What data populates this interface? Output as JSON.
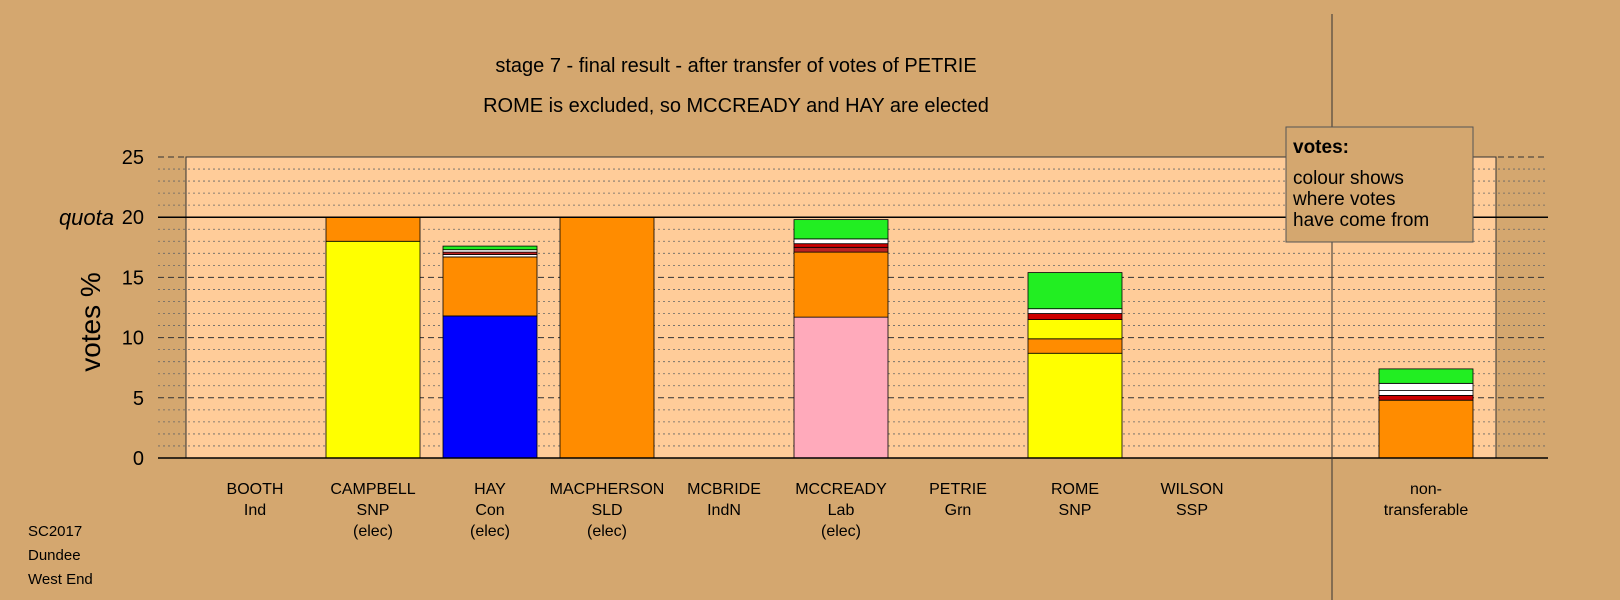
{
  "title_line1": "stage 7 - final result - after transfer of votes of PETRIE",
  "title_line2": "ROME is excluded, so MCCREADY and HAY are elected",
  "footer": [
    "SC2017",
    "Dundee",
    "West End"
  ],
  "legend": {
    "title": "votes:",
    "lines": [
      "colour shows",
      "where votes",
      "have come from"
    ]
  },
  "colors": {
    "plot_bg": "#ffcc99",
    "page_bg": "#d4a76f",
    "SNP": "#ffff00",
    "SLD": "#ff8c00",
    "Con": "#0000ff",
    "Lab": "#ffaabb",
    "Grn": "#22ee22",
    "Ind": "#ffffff",
    "IndN": "#bb2222",
    "SSP": "#cc0000"
  },
  "chart_data": {
    "type": "bar",
    "stacked": true,
    "ylabel": "votes %",
    "ylim": [
      0,
      25
    ],
    "yticks": [
      0,
      5,
      10,
      15,
      20,
      25
    ],
    "quota": {
      "label": "quota",
      "value": 20
    },
    "grid": true,
    "legend_position": "top-right",
    "categories": [
      {
        "lines": [
          "BOOTH",
          "Ind"
        ],
        "segments": []
      },
      {
        "lines": [
          "CAMPBELL",
          "SNP",
          "(elec)"
        ],
        "segments": [
          {
            "color": "#ffff00",
            "value": 18.0
          },
          {
            "color": "#ff8c00",
            "value": 2.0
          }
        ]
      },
      {
        "lines": [
          "HAY",
          "Con",
          "(elec)"
        ],
        "segments": [
          {
            "color": "#0000ff",
            "value": 11.8
          },
          {
            "color": "#ff8c00",
            "value": 4.9
          },
          {
            "color": "#ffffff",
            "value": 0.2
          },
          {
            "color": "#bb2222",
            "value": 0.2
          },
          {
            "color": "#ffffff",
            "value": 0.2
          },
          {
            "color": "#22ee22",
            "value": 0.3
          }
        ]
      },
      {
        "lines": [
          "MACPHERSON",
          "SLD",
          "(elec)"
        ],
        "segments": [
          {
            "color": "#ff8c00",
            "value": 20.0
          }
        ]
      },
      {
        "lines": [
          "MCBRIDE",
          "IndN"
        ],
        "segments": []
      },
      {
        "lines": [
          "MCCREADY",
          "Lab",
          "(elec)"
        ],
        "segments": [
          {
            "color": "#ffaabb",
            "value": 11.7
          },
          {
            "color": "#ff8c00",
            "value": 5.4
          },
          {
            "color": "#bb2222",
            "value": 0.4
          },
          {
            "color": "#cc0000",
            "value": 0.3
          },
          {
            "color": "#ffffff",
            "value": 0.4
          },
          {
            "color": "#22ee22",
            "value": 1.6
          }
        ]
      },
      {
        "lines": [
          "PETRIE",
          "Grn"
        ],
        "segments": []
      },
      {
        "lines": [
          "ROME",
          "SNP"
        ],
        "segments": [
          {
            "color": "#ffff00",
            "value": 8.7
          },
          {
            "color": "#ff8c00",
            "value": 1.2
          },
          {
            "color": "#ffff00",
            "value": 1.6
          },
          {
            "color": "#cc0000",
            "value": 0.5
          },
          {
            "color": "#ffffff",
            "value": 0.4
          },
          {
            "color": "#22ee22",
            "value": 3.0
          }
        ]
      },
      {
        "lines": [
          "WILSON",
          "SSP"
        ],
        "segments": []
      },
      {
        "lines": [
          "non-",
          "transferable"
        ],
        "segments": [
          {
            "color": "#ff8c00",
            "value": 4.8
          },
          {
            "color": "#cc0000",
            "value": 0.4
          },
          {
            "color": "#ffffff",
            "value": 0.4
          },
          {
            "color": "#ffffff",
            "value": 0.6
          },
          {
            "color": "#22ee22",
            "value": 1.2
          }
        ]
      }
    ]
  }
}
